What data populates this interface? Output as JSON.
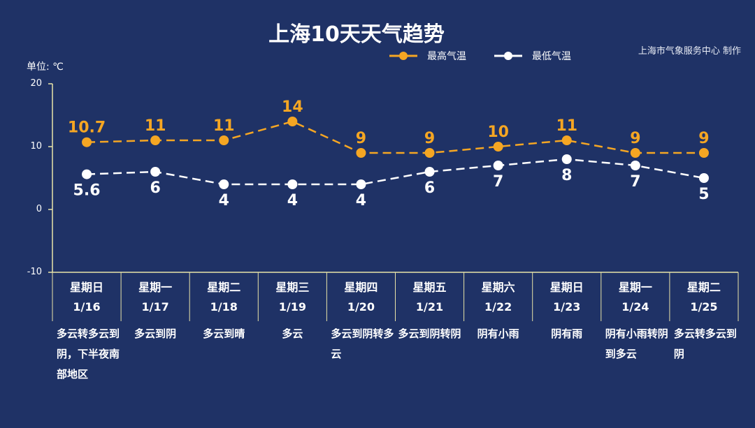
{
  "title": "上海10天天气趋势",
  "source": "上海市气象服务中心 制作",
  "unit_label": "单位: ℃",
  "colors": {
    "background": "#1f3266",
    "high": "#f5a623",
    "low": "#ffffff",
    "axis": "#e9e4a8"
  },
  "chart_data": {
    "type": "line",
    "title": "上海10天天气趋势",
    "ylabel": "单位: ℃",
    "ylim": [
      -10,
      20
    ],
    "yticks": [
      20,
      10,
      0,
      -10
    ],
    "x": [
      "1/16",
      "1/17",
      "1/18",
      "1/19",
      "1/20",
      "1/21",
      "1/22",
      "1/23",
      "1/24",
      "1/25"
    ],
    "series": [
      {
        "name": "最高气温",
        "color": "#f5a623",
        "values": [
          10.7,
          11,
          11,
          14,
          9,
          9,
          10,
          11,
          9,
          9
        ]
      },
      {
        "name": "最低气温",
        "color": "#ffffff",
        "values": [
          5.6,
          6,
          4,
          4,
          4,
          6,
          7,
          8,
          7,
          5
        ]
      }
    ],
    "legend": "top-right",
    "grid": false
  },
  "days": [
    {
      "weekday": "星期日",
      "date": "1/16",
      "weather": "多云转多云到阴，下半夜南部地区"
    },
    {
      "weekday": "星期一",
      "date": "1/17",
      "weather": "多云到阴"
    },
    {
      "weekday": "星期二",
      "date": "1/18",
      "weather": "多云到晴"
    },
    {
      "weekday": "星期三",
      "date": "1/19",
      "weather": "多云"
    },
    {
      "weekday": "星期四",
      "date": "1/20",
      "weather": "多云到阴转多云"
    },
    {
      "weekday": "星期五",
      "date": "1/21",
      "weather": "多云到阴转阴"
    },
    {
      "weekday": "星期六",
      "date": "1/22",
      "weather": "阴有小雨"
    },
    {
      "weekday": "星期日",
      "date": "1/23",
      "weather": "阴有雨"
    },
    {
      "weekday": "星期一",
      "date": "1/24",
      "weather": "阴有小雨转阴到多云"
    },
    {
      "weekday": "星期二",
      "date": "1/25",
      "weather": "多云转多云到阴"
    }
  ]
}
